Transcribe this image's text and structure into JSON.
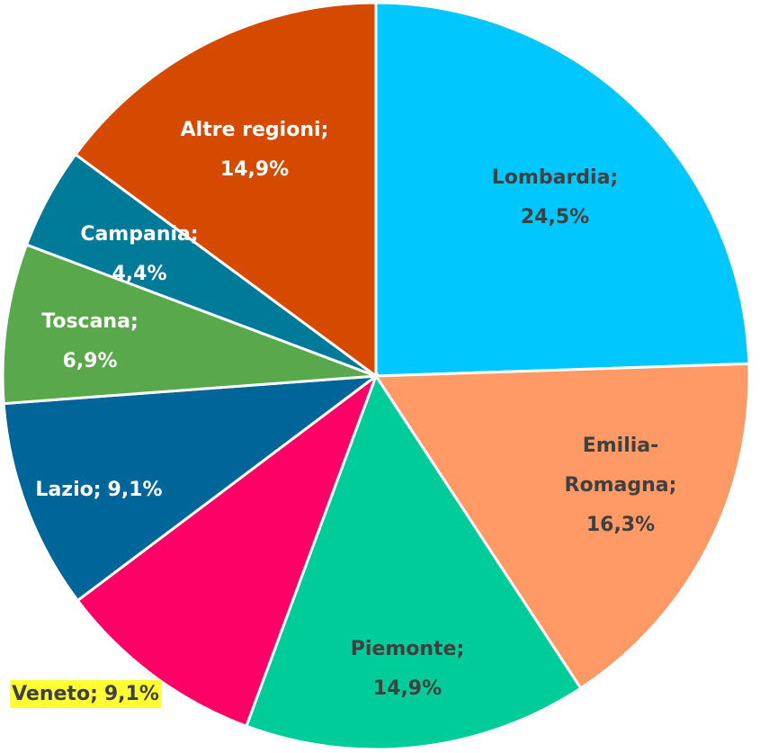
{
  "chart_data": {
    "type": "pie",
    "categories": [
      "Lombardia;",
      "Emilia-Romagna;",
      "Piemonte;",
      "Veneto;",
      "Lazio;",
      "Toscana;",
      "Campania;",
      "Altre regioni;"
    ],
    "values": [
      24.5,
      16.3,
      14.9,
      9.1,
      9.1,
      6.9,
      4.4,
      14.9
    ],
    "value_labels": [
      "24,5%",
      "16,3%",
      "14,9%",
      "9,1%",
      "9,1%",
      "6,9%",
      "4,4%",
      "14,9%"
    ],
    "colors": [
      "#00c8ff",
      "#ff9966",
      "#00cc99",
      "#ff0066",
      "#006699",
      "#59a84b",
      "#007a99",
      "#d64a00"
    ]
  }
}
